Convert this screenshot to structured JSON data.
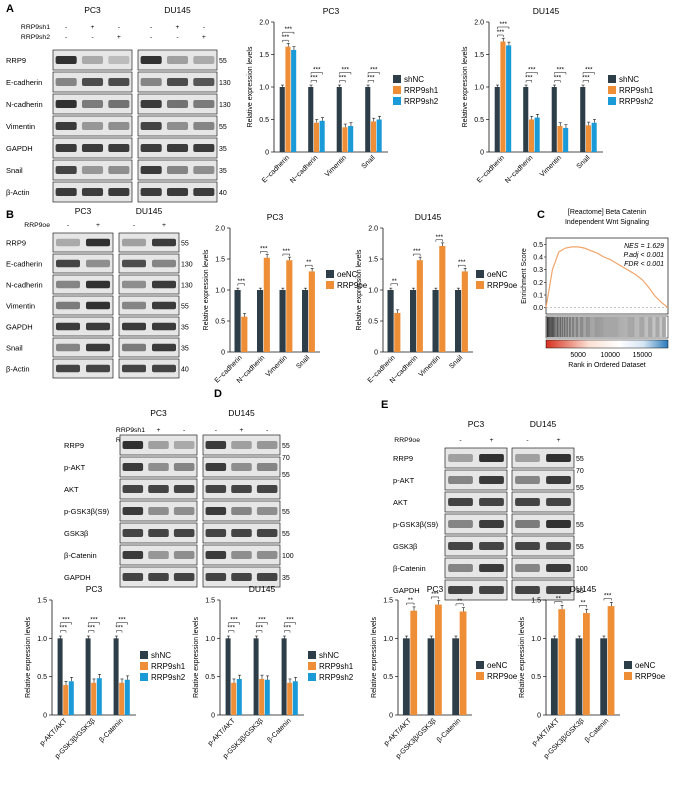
{
  "colors": {
    "shNC": "#2d3e49",
    "sh1": "#ee8e36",
    "sh2": "#1a9ad6",
    "gsea_line": "#f0a56a",
    "axis": "#111111"
  },
  "panel_labels": [
    "A",
    "B",
    "C",
    "D",
    "E"
  ],
  "common": {
    "mw": {
      "55": "55",
      "130": "130",
      "35": "35",
      "40": "40",
      "70": "70",
      "100": "100"
    },
    "minus": "-",
    "plus": "+",
    "significance": "***",
    "sig2": "**"
  },
  "panelA": {
    "blot": {
      "cell_lines": [
        "PC3",
        "DU145"
      ],
      "conditions": [
        "RRP9sh1",
        "RRP9sh2"
      ],
      "proteins": [
        "RRP9",
        "E-cadherin",
        "N-cadherin",
        "Vimentin",
        "GAPDH",
        "Snail",
        "β-Actin"
      ],
      "mw": [
        "55",
        "130",
        "130",
        "55",
        "35",
        "35",
        "40"
      ]
    },
    "charts": [
      {
        "title": "PC3",
        "ylabel": "Relative expression levels",
        "categories": [
          "E−cadherin",
          "N−cadherin",
          "Vimentin",
          "Snail"
        ],
        "legend": [
          "shNC",
          "RRP9sh1",
          "RRP9sh2"
        ],
        "ylim": [
          0,
          2.0
        ],
        "yticks": [
          "0",
          "0.5",
          "1.0",
          "1.5",
          "2.0"
        ]
      },
      {
        "title": "DU145",
        "ylabel": "Relative expression levels",
        "categories": [
          "E−cadherin",
          "N−cadherin",
          "Vimentin",
          "Snail"
        ],
        "legend": [
          "shNC",
          "RRP9sh1",
          "RRP9sh2"
        ],
        "ylim": [
          0,
          2.0
        ],
        "yticks": [
          "0",
          "0.5",
          "1.0",
          "1.5",
          "2.0"
        ]
      }
    ]
  },
  "panelB": {
    "blot": {
      "cell_lines": [
        "PC3",
        "DU145"
      ],
      "conditions": [
        "RRP9oe"
      ],
      "proteins": [
        "RRP9",
        "E-cadherin",
        "N-cadherin",
        "Vimentin",
        "GAPDH",
        "Snail",
        "β-Actin"
      ],
      "mw": [
        "55",
        "130",
        "130",
        "55",
        "35",
        "35",
        "40"
      ]
    },
    "charts": [
      {
        "title": "PC3",
        "ylabel": "Relative expression levels",
        "categories": [
          "E−cadherin",
          "N−cadherin",
          "Vimentin",
          "Snail"
        ],
        "legend": [
          "oeNC",
          "RRP9oe"
        ],
        "ylim": [
          0,
          2.0
        ],
        "yticks": [
          "0",
          "0.5",
          "1.0",
          "1.5",
          "2.0"
        ]
      },
      {
        "title": "DU145",
        "ylabel": "Relative expression levels",
        "categories": [
          "E−cadherin",
          "N−cadherin",
          "Vimentin",
          "Snail"
        ],
        "legend": [
          "oeNC",
          "RRP9oe"
        ],
        "ylim": [
          0,
          2.0
        ],
        "yticks": [
          "0",
          "0.5",
          "1.0",
          "1.5",
          "2.0"
        ]
      }
    ]
  },
  "panelC": {
    "title_line1": "[Reactome] Beta Catenin",
    "title_line2": "Independent Wnt Signaling",
    "ylabel": "Enrichment Score",
    "xlabel": "Rank in Ordered Dataset",
    "yticks": [
      "0.5",
      "0.4",
      "0.3",
      "0.2",
      "0.1",
      "0.0"
    ],
    "xticks": [
      "5000",
      "10000",
      "15000"
    ],
    "nes": "NES = 1.629",
    "padj": "P.adj < 0.001",
    "fdr": "FDR < 0.001"
  },
  "panelD": {
    "blot": {
      "cell_lines": [
        "PC3",
        "DU145"
      ],
      "conditions": [
        "RRP9sh1",
        "RRP9sh2"
      ],
      "proteins": [
        "RRP9",
        "p-AKT",
        "AKT",
        "p-GSK3β(S9)",
        "GSK3β",
        "β-Catenin",
        "GAPDH"
      ],
      "mw": [
        "55",
        "70|55",
        "",
        "55",
        "55",
        "100",
        "35"
      ]
    },
    "charts": [
      {
        "title": "PC3",
        "ylabel": "Relative expression levels",
        "categories": [
          "p-AKT/AKT",
          "p-GSK3β/GSK3β",
          "β-Catenin"
        ],
        "legend": [
          "shNC",
          "RRP9sh1",
          "RRP9sh2"
        ],
        "ylim": [
          0,
          1.5
        ],
        "yticks": [
          "0",
          "0.5",
          "1.0",
          "1.5"
        ]
      },
      {
        "title": "DU145",
        "ylabel": "Relative expression levels",
        "categories": [
          "p-AKT/AKT",
          "p-GSK3β/GSK3β",
          "β-Catenin"
        ],
        "legend": [
          "shNC",
          "RRP9sh1",
          "RRP9sh2"
        ],
        "ylim": [
          0,
          1.5
        ],
        "yticks": [
          "0",
          "0.5",
          "1.0",
          "1.5"
        ]
      }
    ]
  },
  "panelE": {
    "blot": {
      "cell_lines": [
        "PC3",
        "DU145"
      ],
      "conditions": [
        "RRP9oe"
      ],
      "proteins": [
        "RRP9",
        "p-AKT",
        "AKT",
        "p-GSK3β(S9)",
        "GSK3β",
        "β-Catenin",
        "GAPDH"
      ],
      "mw": [
        "55",
        "70|55",
        "",
        "55",
        "55",
        "100",
        "35"
      ]
    },
    "charts": [
      {
        "title": "PC3",
        "ylabel": "Relative expression levels",
        "categories": [
          "p-AKT/AKT",
          "p-GSK3β/GSK3β",
          "β-Catenin"
        ],
        "legend": [
          "oeNC",
          "RRP9oe"
        ],
        "ylim": [
          0,
          1.5
        ],
        "yticks": [
          "0",
          "0.5",
          "1.0",
          "1.5"
        ]
      },
      {
        "title": "DU145",
        "ylabel": "Relative expression levels",
        "categories": [
          "p-AKT/AKT",
          "p-GSK3β/GSK3β",
          "β-Catenin"
        ],
        "legend": [
          "oeNC",
          "RRP9oe"
        ],
        "ylim": [
          0,
          1.5
        ],
        "yticks": [
          "0",
          "0.5",
          "1.0",
          "1.5"
        ]
      }
    ]
  },
  "chart_data": [
    {
      "type": "bar",
      "panel": "A",
      "title": "PC3",
      "ylabel": "Relative expression levels",
      "ylim": [
        0,
        2.0
      ],
      "categories": [
        "E−cadherin",
        "N−cadherin",
        "Vimentin",
        "Snail"
      ],
      "series": [
        {
          "name": "shNC",
          "values": [
            1.0,
            1.0,
            1.0,
            1.0
          ]
        },
        {
          "name": "RRP9sh1",
          "values": [
            1.62,
            0.45,
            0.38,
            0.47
          ]
        },
        {
          "name": "RRP9sh2",
          "values": [
            1.57,
            0.48,
            0.4,
            0.5
          ]
        }
      ]
    },
    {
      "type": "bar",
      "panel": "A",
      "title": "DU145",
      "ylabel": "Relative expression levels",
      "ylim": [
        0,
        2.0
      ],
      "categories": [
        "E−cadherin",
        "N−cadherin",
        "Vimentin",
        "Snail"
      ],
      "series": [
        {
          "name": "shNC",
          "values": [
            1.0,
            1.0,
            1.0,
            1.0
          ]
        },
        {
          "name": "RRP9sh1",
          "values": [
            1.7,
            0.5,
            0.4,
            0.41
          ]
        },
        {
          "name": "RRP9sh2",
          "values": [
            1.64,
            0.53,
            0.37,
            0.45
          ]
        }
      ]
    },
    {
      "type": "bar",
      "panel": "B",
      "title": "PC3",
      "ylabel": "Relative expression levels",
      "ylim": [
        0,
        2.0
      ],
      "categories": [
        "E−cadherin",
        "N−cadherin",
        "Vimentin",
        "Snail"
      ],
      "series": [
        {
          "name": "oeNC",
          "values": [
            1.0,
            1.0,
            1.0,
            1.0
          ]
        },
        {
          "name": "RRP9oe",
          "values": [
            0.57,
            1.52,
            1.48,
            1.3
          ]
        }
      ]
    },
    {
      "type": "bar",
      "panel": "B",
      "title": "DU145",
      "ylabel": "Relative expression levels",
      "ylim": [
        0,
        2.0
      ],
      "categories": [
        "E−cadherin",
        "N−cadherin",
        "Vimentin",
        "Snail"
      ],
      "series": [
        {
          "name": "oeNC",
          "values": [
            1.0,
            1.0,
            1.0,
            1.0
          ]
        },
        {
          "name": "RRP9oe",
          "values": [
            0.63,
            1.48,
            1.71,
            1.3
          ]
        }
      ]
    },
    {
      "type": "bar",
      "panel": "D",
      "title": "PC3",
      "ylabel": "Relative expression levels",
      "ylim": [
        0,
        1.5
      ],
      "categories": [
        "p-AKT/AKT",
        "p-GSK3β/GSK3β",
        "β-Catenin"
      ],
      "series": [
        {
          "name": "shNC",
          "values": [
            1.0,
            1.0,
            1.0
          ]
        },
        {
          "name": "RRP9sh1",
          "values": [
            0.39,
            0.42,
            0.42
          ]
        },
        {
          "name": "RRP9sh2",
          "values": [
            0.44,
            0.48,
            0.46
          ]
        }
      ]
    },
    {
      "type": "bar",
      "panel": "D",
      "title": "DU145",
      "ylabel": "Relative expression levels",
      "ylim": [
        0,
        1.5
      ],
      "categories": [
        "p-AKT/AKT",
        "p-GSK3β/GSK3β",
        "β-Catenin"
      ],
      "series": [
        {
          "name": "shNC",
          "values": [
            1.0,
            1.0,
            1.0
          ]
        },
        {
          "name": "RRP9sh1",
          "values": [
            0.42,
            0.47,
            0.42
          ]
        },
        {
          "name": "RRP9sh2",
          "values": [
            0.47,
            0.46,
            0.44
          ]
        }
      ]
    },
    {
      "type": "bar",
      "panel": "E",
      "title": "PC3",
      "ylabel": "Relative expression levels",
      "ylim": [
        0,
        1.5
      ],
      "categories": [
        "p-AKT/AKT",
        "p-GSK3β/GSK3β",
        "β-Catenin"
      ],
      "series": [
        {
          "name": "oeNC",
          "values": [
            1.0,
            1.0,
            1.0
          ]
        },
        {
          "name": "RRP9oe",
          "values": [
            1.36,
            1.44,
            1.35
          ]
        }
      ]
    },
    {
      "type": "bar",
      "panel": "E",
      "title": "DU145",
      "ylabel": "Relative expression levels",
      "ylim": [
        0,
        1.5
      ],
      "categories": [
        "p-AKT/AKT",
        "p-GSK3β/GSK3β",
        "β-Catenin"
      ],
      "series": [
        {
          "name": "oeNC",
          "values": [
            1.0,
            1.0,
            1.0
          ]
        },
        {
          "name": "RRP9oe",
          "values": [
            1.38,
            1.33,
            1.42
          ]
        }
      ]
    },
    {
      "type": "line",
      "panel": "C",
      "title": "[Reactome] Beta Catenin Independent Wnt Signaling",
      "xlabel": "Rank in Ordered Dataset",
      "ylabel": "Enrichment Score",
      "xlim": [
        0,
        19000
      ],
      "ylim": [
        -0.05,
        0.55
      ],
      "x": [
        0,
        1000,
        2000,
        3000,
        4000,
        5000,
        6000,
        7000,
        8000,
        9000,
        10000,
        11000,
        12000,
        13000,
        14000,
        15000,
        16000,
        17000,
        18000,
        19000
      ],
      "series": [
        {
          "values": [
            0.0,
            0.3,
            0.44,
            0.47,
            0.48,
            0.48,
            0.47,
            0.45,
            0.43,
            0.4,
            0.38,
            0.35,
            0.32,
            0.29,
            0.26,
            0.22,
            0.16,
            0.09,
            0.04,
            0.0
          ]
        }
      ]
    }
  ]
}
